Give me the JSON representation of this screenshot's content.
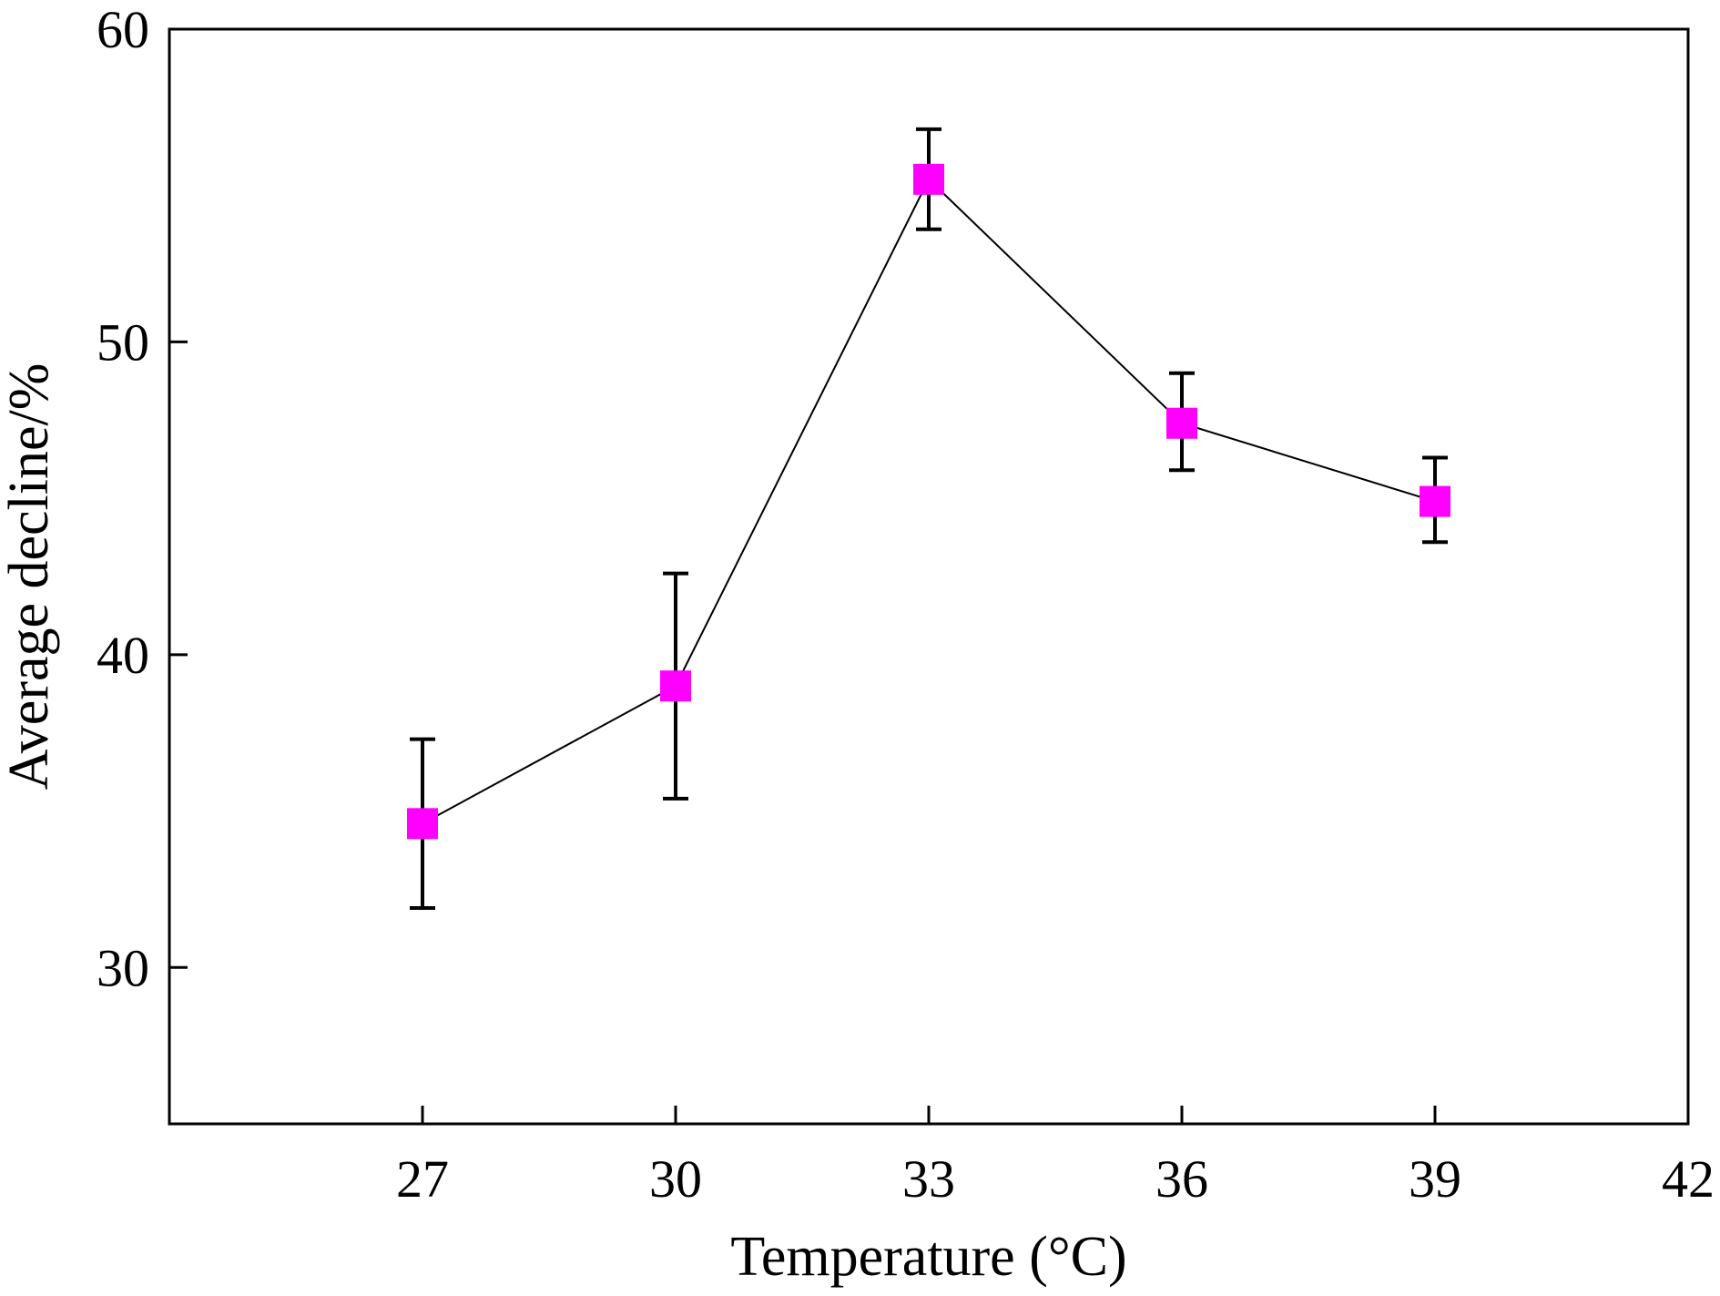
{
  "chart_data": {
    "type": "line",
    "title": "",
    "xlabel": "Temperature (°C)",
    "ylabel": "Average decline/%",
    "xlim": [
      24,
      42
    ],
    "ylim": [
      25,
      60
    ],
    "xticks": [
      27,
      30,
      33,
      36,
      39,
      42
    ],
    "yticks": [
      30,
      40,
      50,
      60
    ],
    "grid": false,
    "series": [
      {
        "name": "Average decline",
        "color": "#ff00ff",
        "marker": "square",
        "x": [
          27,
          30,
          33,
          36,
          39
        ],
        "y": [
          34.6,
          39.0,
          55.2,
          47.4,
          44.9
        ],
        "err_low": [
          31.9,
          35.4,
          53.6,
          45.9,
          43.6
        ],
        "err_high": [
          37.3,
          42.6,
          56.8,
          49.0,
          46.3
        ]
      }
    ]
  }
}
